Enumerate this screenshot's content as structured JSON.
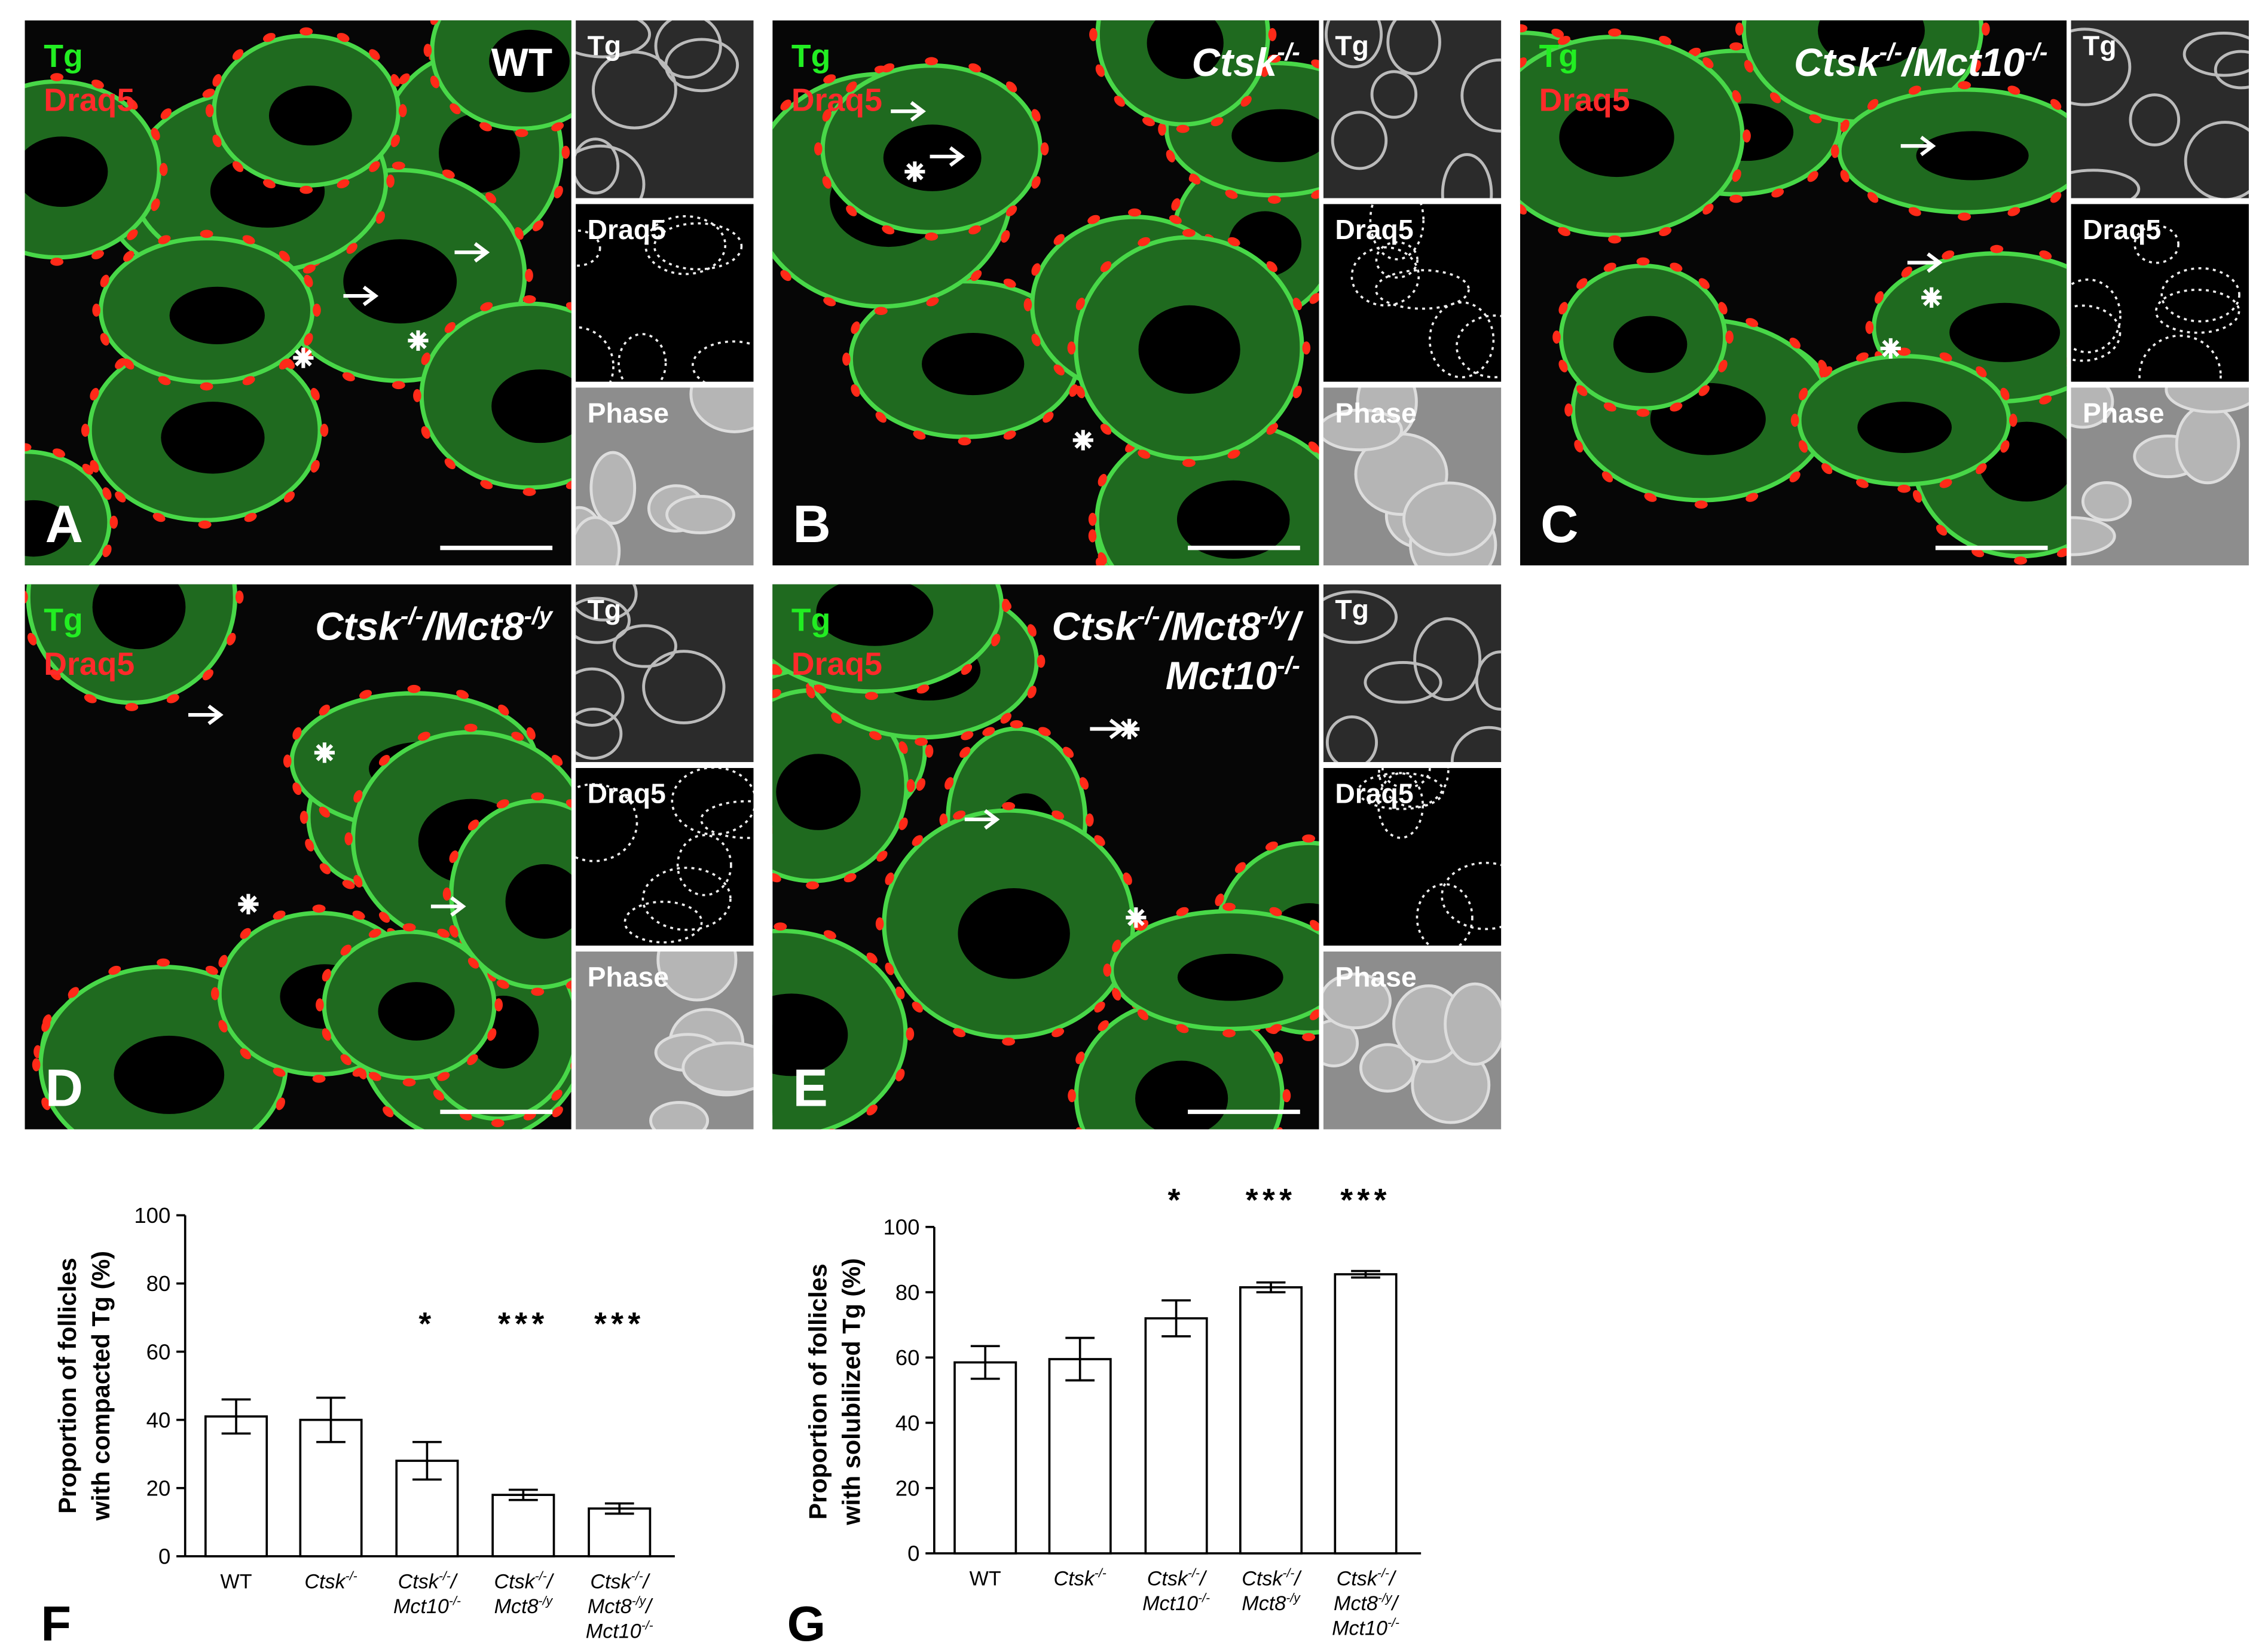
{
  "micrographs": [
    {
      "letter": "A",
      "stain_green": "Tg",
      "stain_red": "Draq5",
      "genotype": [
        [
          {
            "t": "WT"
          }
        ]
      ],
      "insets": [
        "Tg",
        "Draq5",
        "Phase"
      ]
    },
    {
      "letter": "B",
      "stain_green": "Tg",
      "stain_red": "Draq5",
      "genotype": [
        [
          {
            "t": "Ctsk"
          },
          {
            "sup": "-/-"
          }
        ]
      ],
      "insets": [
        "Tg",
        "Draq5",
        "Phase"
      ]
    },
    {
      "letter": "C",
      "stain_green": "Tg",
      "stain_red": "Draq5",
      "genotype": [
        [
          {
            "t": "Ctsk"
          },
          {
            "sup": "-/-"
          },
          {
            "t": "/Mct10"
          },
          {
            "sup": "-/-"
          }
        ]
      ],
      "insets": [
        "Tg",
        "Draq5",
        "Phase"
      ]
    },
    {
      "letter": "D",
      "stain_green": "Tg",
      "stain_red": "Draq5",
      "genotype": [
        [
          {
            "t": "Ctsk"
          },
          {
            "sup": "-/-"
          },
          {
            "t": "/Mct8"
          },
          {
            "sup": "-/y"
          }
        ]
      ],
      "insets": [
        "Tg",
        "Draq5",
        "Phase"
      ]
    },
    {
      "letter": "E",
      "stain_green": "Tg",
      "stain_red": "Draq5",
      "genotype": [
        [
          {
            "t": "Ctsk"
          },
          {
            "sup": "-/-"
          },
          {
            "t": "/Mct8"
          },
          {
            "sup": "-/y"
          },
          {
            "t": "/"
          }
        ],
        [
          {
            "t": "Mct10"
          },
          {
            "sup": "-/-"
          }
        ]
      ],
      "insets": [
        "Tg",
        "Draq5",
        "Phase"
      ]
    }
  ],
  "chart_data": [
    {
      "type": "bar",
      "panel_letter": "F",
      "ylabel": [
        "Proportion of follicles",
        "with compacted Tg (%)"
      ],
      "categories": [
        [
          [
            {
              "t": "WT"
            }
          ]
        ],
        [
          [
            {
              "t": "Ctsk"
            },
            {
              "sup": "-/-"
            }
          ]
        ],
        [
          [
            {
              "t": "Ctsk"
            },
            {
              "sup": "-/-"
            },
            {
              "t": "/"
            }
          ],
          [
            {
              "t": "Mct10"
            },
            {
              "sup": "-/-"
            }
          ]
        ],
        [
          [
            {
              "t": "Ctsk"
            },
            {
              "sup": "-/-"
            },
            {
              "t": "/"
            }
          ],
          [
            {
              "t": "Mct8"
            },
            {
              "sup": "-/y"
            }
          ]
        ],
        [
          [
            {
              "t": "Ctsk"
            },
            {
              "sup": "-/-"
            },
            {
              "t": "/"
            }
          ],
          [
            {
              "t": "Mct8"
            },
            {
              "sup": "-/y"
            },
            {
              "t": "/"
            }
          ],
          [
            {
              "t": "Mct10"
            },
            {
              "sup": "-/-"
            }
          ]
        ]
      ],
      "values": [
        41,
        40,
        28,
        18,
        14
      ],
      "errors": [
        5,
        6.5,
        5.5,
        1.5,
        1.5
      ],
      "significance": [
        null,
        null,
        "*",
        "***",
        "***"
      ],
      "color": "#ffffff",
      "ylim": [
        0,
        100
      ],
      "yticks": [
        0,
        20,
        40,
        60,
        80,
        100
      ]
    },
    {
      "type": "bar",
      "panel_letter": "G",
      "ylabel": [
        "Proportion of follicles",
        "with solubilized Tg (%)"
      ],
      "categories": [
        [
          [
            {
              "t": "WT"
            }
          ]
        ],
        [
          [
            {
              "t": "Ctsk"
            },
            {
              "sup": "-/-"
            }
          ]
        ],
        [
          [
            {
              "t": "Ctsk"
            },
            {
              "sup": "-/-"
            },
            {
              "t": "/"
            }
          ],
          [
            {
              "t": "Mct10"
            },
            {
              "sup": "-/-"
            }
          ]
        ],
        [
          [
            {
              "t": "Ctsk"
            },
            {
              "sup": "-/-"
            },
            {
              "t": "/"
            }
          ],
          [
            {
              "t": "Mct8"
            },
            {
              "sup": "-/y"
            }
          ]
        ],
        [
          [
            {
              "t": "Ctsk"
            },
            {
              "sup": "-/-"
            },
            {
              "t": "/"
            }
          ],
          [
            {
              "t": "Mct8"
            },
            {
              "sup": "-/y"
            },
            {
              "t": "/"
            }
          ],
          [
            {
              "t": "Mct10"
            },
            {
              "sup": "-/-"
            }
          ]
        ]
      ],
      "values": [
        58.5,
        59.5,
        72,
        81.5,
        85.5
      ],
      "errors": [
        5,
        6.5,
        5.5,
        1.5,
        1
      ],
      "significance": [
        null,
        null,
        "*",
        "***",
        "***"
      ],
      "color": "#ffffff",
      "ylim": [
        0,
        100
      ],
      "yticks": [
        0,
        20,
        40,
        60,
        80,
        100
      ]
    }
  ]
}
